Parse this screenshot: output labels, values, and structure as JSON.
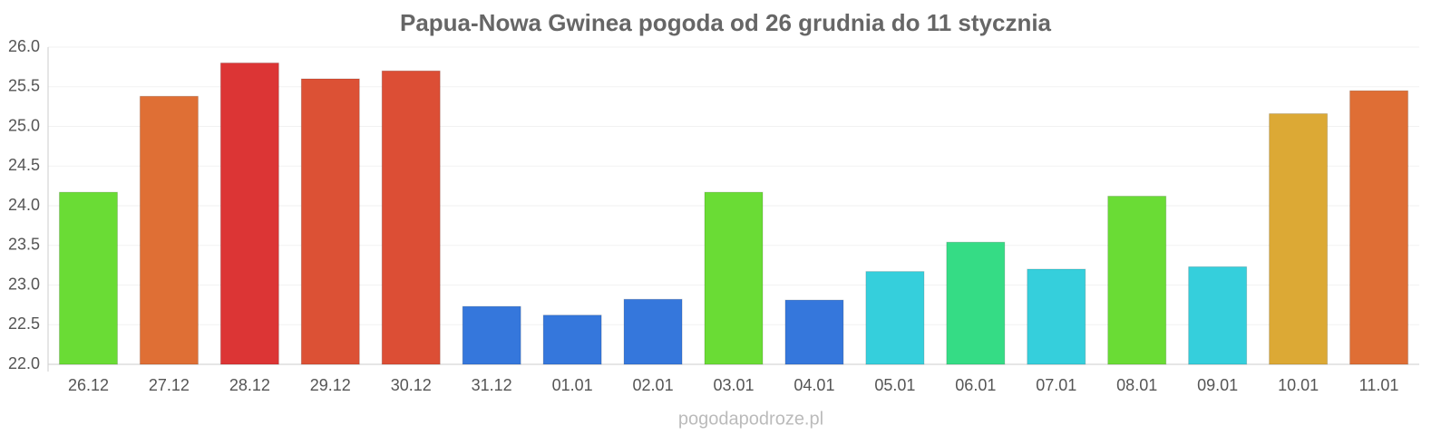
{
  "chart_data": {
    "type": "bar",
    "title": "Papua-Nowa Gwinea pogoda od 26 grudnia do 11 stycznia",
    "categories": [
      "26.12",
      "27.12",
      "28.12",
      "29.12",
      "30.12",
      "31.12",
      "01.01",
      "02.01",
      "03.01",
      "04.01",
      "05.01",
      "06.01",
      "07.01",
      "08.01",
      "09.01",
      "10.01",
      "11.01"
    ],
    "values": [
      24.17,
      25.38,
      25.8,
      25.6,
      25.7,
      22.73,
      22.62,
      22.82,
      24.17,
      22.81,
      23.17,
      23.54,
      23.2,
      24.12,
      23.23,
      25.16,
      25.45
    ],
    "colors": [
      "#6adc35",
      "#df6f35",
      "#dc3535",
      "#dc5135",
      "#dc4e35",
      "#3577dc",
      "#3577dc",
      "#3577dc",
      "#6adc35",
      "#3577dc",
      "#35cfdc",
      "#35dc85",
      "#35cfdc",
      "#6adc35",
      "#35cfdc",
      "#dca935",
      "#df6e35"
    ],
    "ylim": [
      22,
      26
    ],
    "yticks": [
      {
        "value": 22,
        "label": "22.0"
      },
      {
        "value": 22.5,
        "label": "22.5"
      },
      {
        "value": 23,
        "label": "23.0"
      },
      {
        "value": 23.5,
        "label": "23.5"
      },
      {
        "value": 24,
        "label": "24.0"
      },
      {
        "value": 24.5,
        "label": "24.5"
      },
      {
        "value": 25,
        "label": "25.0"
      },
      {
        "value": 25.5,
        "label": "25.5"
      },
      {
        "value": 26,
        "label": "26.0"
      }
    ],
    "grid": true,
    "source": "pogodapodroze.pl"
  }
}
